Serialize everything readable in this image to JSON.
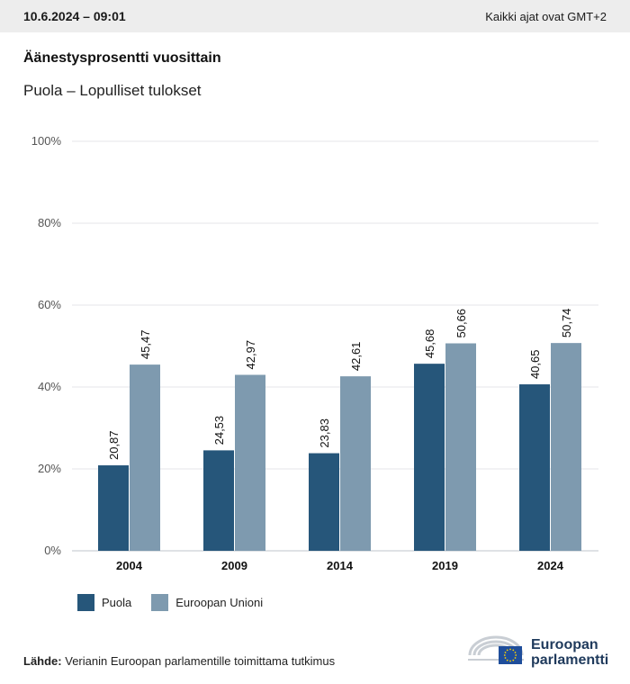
{
  "header": {
    "datetime": "10.6.2024 – 09:01",
    "timezone": "Kaikki ajat ovat GMT+2"
  },
  "title": "Äänestysprosentti vuosittain",
  "subtitle": "Puola – Lopulliset tulokset",
  "chart_data": {
    "type": "bar",
    "categories": [
      "2004",
      "2009",
      "2014",
      "2019",
      "2024"
    ],
    "series": [
      {
        "name": "Puola",
        "values": [
          20.87,
          24.53,
          23.83,
          45.68,
          40.65
        ],
        "labels": [
          "20,87",
          "24,53",
          "23,83",
          "45,68",
          "40,65"
        ],
        "color": "#26567a"
      },
      {
        "name": "Euroopan Unioni",
        "values": [
          45.47,
          42.97,
          42.61,
          50.66,
          50.74
        ],
        "labels": [
          "45,47",
          "42,97",
          "42,61",
          "50,66",
          "50,74"
        ],
        "color": "#7e9aaf"
      }
    ],
    "ylim": [
      0,
      100
    ],
    "yticks": [
      0,
      20,
      40,
      60,
      80,
      100
    ],
    "ytick_labels": [
      "0%",
      "20%",
      "40%",
      "60%",
      "80%",
      "100%"
    ],
    "grid": true,
    "legend_position": "bottom-left"
  },
  "source": {
    "label": "Lähde:",
    "text": "Verianin Euroopan parlamentille toimittama tutkimus"
  },
  "logo": {
    "line1": "Euroopan",
    "line2": "parlamentti",
    "icon": "european-parliament-hemicycle-icon",
    "flag_icon": "eu-flag-icon"
  }
}
